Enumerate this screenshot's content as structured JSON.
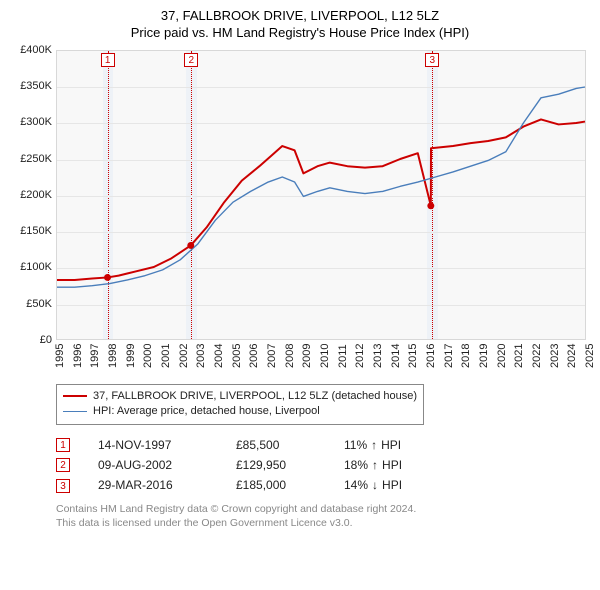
{
  "title": {
    "line1": "37, FALLBROOK DRIVE, LIVERPOOL, L12 5LZ",
    "line2": "Price paid vs. HM Land Registry's House Price Index (HPI)"
  },
  "chart": {
    "type": "line",
    "background_color": "#f8f8f8",
    "grid_color": "#e6e6e6",
    "border_color": "#d8d8d8",
    "x_years": [
      1995,
      1996,
      1997,
      1998,
      1999,
      2000,
      2001,
      2002,
      2003,
      2004,
      2005,
      2006,
      2007,
      2008,
      2009,
      2010,
      2011,
      2012,
      2013,
      2014,
      2015,
      2016,
      2017,
      2018,
      2019,
      2020,
      2021,
      2022,
      2023,
      2024,
      2025
    ],
    "y_min": 0,
    "y_max": 400000,
    "y_ticks": [
      0,
      50000,
      100000,
      150000,
      200000,
      250000,
      300000,
      350000,
      400000
    ],
    "y_tick_labels": [
      "£0",
      "£50K",
      "£100K",
      "£150K",
      "£200K",
      "£250K",
      "£300K",
      "£350K",
      "£400K"
    ],
    "series": [
      {
        "label": "37, FALLBROOK DRIVE, LIVERPOOL, L12 5LZ (detached house)",
        "color": "#cc0000",
        "line_width": 2,
        "points": [
          [
            1995.0,
            82000
          ],
          [
            1996.0,
            82000
          ],
          [
            1997.0,
            84000
          ],
          [
            1997.87,
            85500
          ],
          [
            1998.5,
            88000
          ],
          [
            1999.5,
            94000
          ],
          [
            2000.5,
            100000
          ],
          [
            2001.5,
            112000
          ],
          [
            2002.6,
            129950
          ],
          [
            2003.5,
            155000
          ],
          [
            2004.5,
            190000
          ],
          [
            2005.5,
            220000
          ],
          [
            2006.5,
            240000
          ],
          [
            2007.2,
            255000
          ],
          [
            2007.8,
            268000
          ],
          [
            2008.5,
            262000
          ],
          [
            2009.0,
            230000
          ],
          [
            2009.8,
            240000
          ],
          [
            2010.5,
            245000
          ],
          [
            2011.5,
            240000
          ],
          [
            2012.5,
            238000
          ],
          [
            2013.5,
            240000
          ],
          [
            2014.5,
            250000
          ],
          [
            2015.5,
            258000
          ],
          [
            2016.24,
            185000
          ],
          [
            2016.25,
            265000
          ],
          [
            2017.5,
            268000
          ],
          [
            2018.5,
            272000
          ],
          [
            2019.5,
            275000
          ],
          [
            2020.5,
            280000
          ],
          [
            2021.5,
            295000
          ],
          [
            2022.5,
            305000
          ],
          [
            2023.5,
            298000
          ],
          [
            2024.5,
            300000
          ],
          [
            2025.0,
            302000
          ]
        ]
      },
      {
        "label": "HPI: Average price, detached house, Liverpool",
        "color": "#4a7ebb",
        "line_width": 1.4,
        "points": [
          [
            1995.0,
            72000
          ],
          [
            1996.0,
            72000
          ],
          [
            1997.0,
            74000
          ],
          [
            1998.0,
            77000
          ],
          [
            1999.0,
            82000
          ],
          [
            2000.0,
            88000
          ],
          [
            2001.0,
            96000
          ],
          [
            2002.0,
            110000
          ],
          [
            2003.0,
            132000
          ],
          [
            2004.0,
            165000
          ],
          [
            2005.0,
            190000
          ],
          [
            2006.0,
            205000
          ],
          [
            2007.0,
            218000
          ],
          [
            2007.8,
            225000
          ],
          [
            2008.5,
            218000
          ],
          [
            2009.0,
            198000
          ],
          [
            2009.8,
            205000
          ],
          [
            2010.5,
            210000
          ],
          [
            2011.5,
            205000
          ],
          [
            2012.5,
            202000
          ],
          [
            2013.5,
            205000
          ],
          [
            2014.5,
            212000
          ],
          [
            2015.5,
            218000
          ],
          [
            2016.5,
            225000
          ],
          [
            2017.5,
            232000
          ],
          [
            2018.5,
            240000
          ],
          [
            2019.5,
            248000
          ],
          [
            2020.5,
            260000
          ],
          [
            2021.5,
            300000
          ],
          [
            2022.5,
            335000
          ],
          [
            2023.5,
            340000
          ],
          [
            2024.5,
            348000
          ],
          [
            2025.0,
            350000
          ]
        ]
      }
    ],
    "markers": [
      {
        "num": "1",
        "x": 1997.87,
        "y": 85500,
        "band_start": 1997.6,
        "band_end": 1998.15
      },
      {
        "num": "2",
        "x": 2002.6,
        "y": 129950,
        "band_start": 2002.3,
        "band_end": 2002.9
      },
      {
        "num": "3",
        "x": 2016.24,
        "y": 185000,
        "band_start": 2015.95,
        "band_end": 2016.55
      }
    ],
    "marker_band_color": "#eef2f7",
    "marker_line_color": "#cc0000"
  },
  "legend": {
    "border_color": "#888888"
  },
  "sales": [
    {
      "num": "1",
      "date": "14-NOV-1997",
      "price": "£85,500",
      "delta_pct": "11%",
      "delta_dir": "up",
      "delta_suffix": "HPI"
    },
    {
      "num": "2",
      "date": "09-AUG-2002",
      "price": "£129,950",
      "delta_pct": "18%",
      "delta_dir": "up",
      "delta_suffix": "HPI"
    },
    {
      "num": "3",
      "date": "29-MAR-2016",
      "price": "£185,000",
      "delta_pct": "14%",
      "delta_dir": "down",
      "delta_suffix": "HPI"
    }
  ],
  "footer": {
    "line1": "Contains HM Land Registry data © Crown copyright and database right 2024.",
    "line2": "This data is licensed under the Open Government Licence v3.0."
  },
  "arrows": {
    "up": "↑",
    "down": "↓"
  }
}
